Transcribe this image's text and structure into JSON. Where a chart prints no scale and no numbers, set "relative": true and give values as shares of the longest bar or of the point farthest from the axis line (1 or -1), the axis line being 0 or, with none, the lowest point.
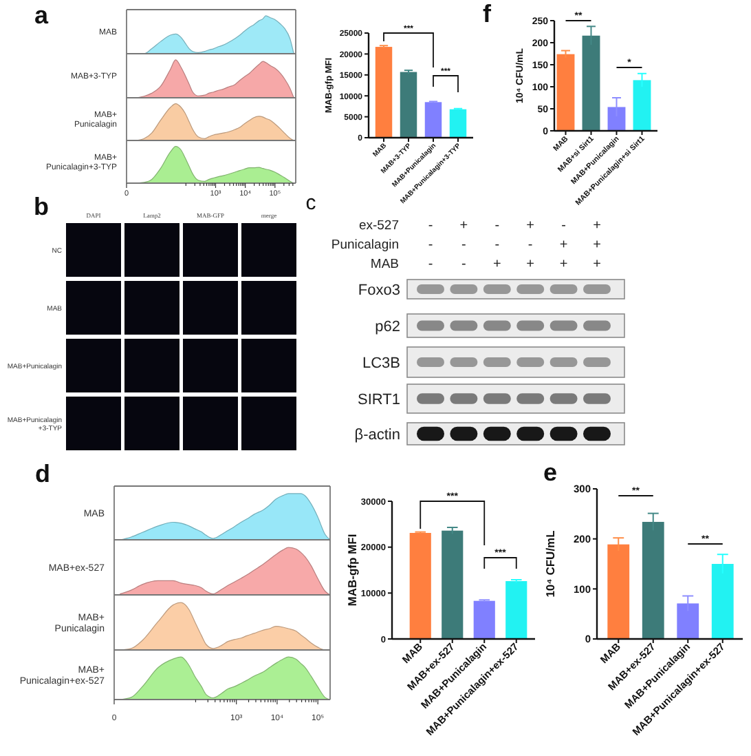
{
  "chart_data": [
    {
      "type": "area",
      "title": "a",
      "relative": true,
      "log": "x",
      "tick_labels": false,
      "xlim": [
        0,
        500000
      ],
      "x": [
        2.2,
        3.9,
        7,
        14,
        30,
        45,
        69,
        93,
        130,
        170,
        260,
        430,
        590,
        850,
        1300,
        1700,
        2600,
        4500,
        6300,
        9200,
        14000,
        19000,
        29000,
        39000,
        49000,
        70000,
        100000,
        150000,
        210000,
        320000,
        430000
      ],
      "series": [
        {
          "name": "MAB",
          "color": "#9ee9f7",
          "values": [
            0,
            0,
            0.13,
            0.32,
            0.49,
            0.52,
            0.43,
            0.29,
            0.13,
            0.06,
            0.03,
            0.06,
            0.1,
            0.13,
            0.19,
            0.22,
            0.29,
            0.4,
            0.48,
            0.59,
            0.7,
            0.76,
            0.87,
            0.92,
            1,
            0.95,
            0.9,
            0.79,
            0.67,
            0.4,
            0
          ]
        }
      ]
    },
    {
      "type": "area",
      "relative": true,
      "log": "x",
      "tick_labels": false,
      "xlim": [
        0,
        500000
      ],
      "x": [
        2.2,
        3.9,
        7,
        14,
        30,
        45,
        69,
        93,
        130,
        170,
        260,
        430,
        590,
        850,
        1300,
        1700,
        2600,
        4500,
        6300,
        9200,
        14000,
        19000,
        29000,
        39000,
        49000,
        70000,
        100000,
        150000,
        210000,
        320000,
        430000
      ],
      "series": [
        {
          "name": "MAB+3-TYP",
          "color": "#f6a8a8",
          "values": [
            0,
            0.04,
            0.12,
            0.3,
            0.75,
            1,
            0.8,
            0.6,
            0.35,
            0.15,
            0.05,
            0.07,
            0.12,
            0.15,
            0.2,
            0.22,
            0.28,
            0.35,
            0.45,
            0.55,
            0.65,
            0.75,
            0.88,
            0.96,
            0.93,
            0.85,
            0.78,
            0.65,
            0.5,
            0.25,
            0
          ]
        }
      ]
    },
    {
      "type": "area",
      "relative": true,
      "log": "x",
      "tick_labels": false,
      "xlim": [
        0,
        500000
      ],
      "x": [
        2.2,
        3.9,
        7,
        14,
        30,
        45,
        69,
        93,
        130,
        170,
        260,
        430,
        590,
        850,
        1300,
        1700,
        2600,
        4500,
        6300,
        9200,
        14000,
        19000,
        29000,
        39000,
        49000,
        70000,
        100000,
        150000,
        210000,
        320000,
        430000
      ],
      "series": [
        {
          "name": "MAB+\nPunicalagin",
          "color": "#f9cca3",
          "values": [
            0,
            0.05,
            0.2,
            0.55,
            0.9,
            1,
            0.9,
            0.75,
            0.5,
            0.3,
            0.1,
            0.05,
            0.1,
            0.15,
            0.18,
            0.2,
            0.23,
            0.3,
            0.35,
            0.45,
            0.55,
            0.62,
            0.66,
            0.64,
            0.6,
            0.55,
            0.45,
            0.32,
            0.2,
            0.06,
            0
          ]
        }
      ]
    },
    {
      "type": "area",
      "relative": true,
      "log": "x",
      "tick_labels": "x",
      "xlim": [
        0,
        500000
      ],
      "xticks": [
        0,
        {
          "value": 100,
          "label": null
        },
        {
          "value": 200,
          "label": null
        },
        {
          "value": 300,
          "label": null
        },
        {
          "value": 400,
          "label": null
        },
        {
          "value": 500,
          "label": null
        },
        {
          "value": 600,
          "label": null
        },
        {
          "value": 700,
          "label": null
        },
        {
          "value": 800,
          "label": null
        },
        {
          "value": 900,
          "label": null
        },
        {
          "value": 1000,
          "label": "10³"
        },
        {
          "value": 2000,
          "label": null
        },
        {
          "value": 3000,
          "label": null
        },
        {
          "value": 4000,
          "label": null
        },
        {
          "value": 5000,
          "label": null
        },
        {
          "value": 6000,
          "label": null
        },
        {
          "value": 7000,
          "label": null
        },
        {
          "value": 8000,
          "label": null
        },
        {
          "value": 9000,
          "label": null
        },
        {
          "value": 10000,
          "label": "10⁴"
        },
        {
          "value": 20000,
          "label": null
        },
        {
          "value": 30000,
          "label": null
        },
        {
          "value": 40000,
          "label": null
        },
        {
          "value": 50000,
          "label": null
        },
        {
          "value": 60000,
          "label": null
        },
        {
          "value": 70000,
          "label": null
        },
        {
          "value": 80000,
          "label": null
        },
        {
          "value": 90000,
          "label": null
        },
        {
          "value": 100000,
          "label": "10⁵"
        },
        {
          "value": 200000,
          "label": null
        },
        {
          "value": 300000,
          "label": null
        },
        {
          "value": 400000,
          "label": null
        }
      ],
      "x": [
        2.2,
        3.9,
        7,
        14,
        30,
        45,
        69,
        93,
        130,
        170,
        260,
        430,
        590,
        850,
        1300,
        1700,
        2600,
        4500,
        6300,
        9200,
        14000,
        19000,
        29000,
        39000,
        49000,
        70000,
        100000,
        150000,
        210000,
        320000,
        430000
      ],
      "series": [
        {
          "name": "MAB+\nPunicalagin+3-TYP",
          "color": "#aaee92",
          "values": [
            0,
            0.02,
            0.1,
            0.4,
            0.85,
            1,
            0.9,
            0.7,
            0.45,
            0.25,
            0.08,
            0.05,
            0.1,
            0.14,
            0.18,
            0.2,
            0.24,
            0.3,
            0.34,
            0.38,
            0.42,
            0.42,
            0.43,
            0.4,
            0.38,
            0.35,
            0.3,
            0.22,
            0.15,
            0.05,
            0
          ]
        }
      ]
    },
    {
      "type": "bar",
      "ylabel": "MAB-gfp MFI",
      "categories": [
        "MAB",
        "MAB+3-TYP",
        "MAB+Punicalagin",
        "MAB+Punicalagin+3-TYP"
      ],
      "values": [
        21700,
        15700,
        8500,
        6800
      ],
      "errors": [
        300,
        400,
        150,
        150
      ],
      "colors": [
        "#ff7f3f",
        "#3d7b79",
        "#8080ff",
        "#22f2f2"
      ],
      "ylim": [
        0,
        25000
      ],
      "yticks": [
        0,
        5000,
        10000,
        15000,
        20000,
        25000
      ],
      "annotations": [
        "***",
        "***"
      ]
    },
    {
      "type": "bar",
      "title": "f",
      "ylabel": "10⁴ CFU/mL",
      "categories": [
        "MAB",
        "MAB+si Sirt1",
        "MAB+Punicalagin",
        "MAB+Punicalagin+si Sirt1"
      ],
      "values": [
        174,
        216,
        54,
        115
      ],
      "errors": [
        8,
        21,
        21,
        15
      ],
      "colors": [
        "#ff7f3f",
        "#3d7b79",
        "#8080ff",
        "#22f2f2"
      ],
      "ylim": [
        0,
        250
      ],
      "yticks": [
        0,
        50,
        100,
        150,
        200,
        250
      ],
      "annotations": [
        "**",
        "*"
      ]
    },
    {
      "type": "other",
      "title": "b",
      "categories": [
        "DAPI",
        "Lamp2",
        "MAB-GFP",
        "merge"
      ],
      "y_categories": [
        "NC",
        "MAB",
        "MAB+Punicalagin",
        "MAB+Punicalagin\n+3-TYP"
      ]
    },
    {
      "type": "other",
      "title": "c",
      "y_categories": [
        "ex-527",
        "Punicalagin",
        "MAB"
      ],
      "cell_labels": [
        [
          "-",
          "+",
          "-",
          "+",
          "-",
          "+"
        ],
        [
          "-",
          "-",
          "-",
          "-",
          "+",
          "+"
        ],
        [
          "-",
          "-",
          "+",
          "+",
          "+",
          "+"
        ]
      ],
      "annotations": [
        "Foxo3",
        "p62",
        "LC3B",
        "SIRT1",
        "β-actin"
      ]
    },
    {
      "type": "area",
      "title": "d",
      "relative": true,
      "log": "x",
      "tick_labels": false,
      "xlim": [
        0,
        200000
      ],
      "x": [
        1.4,
        2.6,
        4.9,
        12,
        28,
        44,
        69,
        95,
        140,
        180,
        270,
        440,
        620,
        880,
        1300,
        1800,
        2700,
        4600,
        6500,
        9300,
        14000,
        19000,
        29000,
        38000,
        49000,
        68000,
        99000,
        150000,
        200000
      ],
      "series": [
        {
          "name": "MAB",
          "color": "#98e7f8",
          "values": [
            0,
            0.06,
            0.16,
            0.3,
            0.38,
            0.36,
            0.3,
            0.24,
            0.17,
            0.1,
            0.03,
            0.12,
            0.2,
            0.28,
            0.38,
            0.45,
            0.55,
            0.65,
            0.75,
            0.88,
            0.96,
            1,
            1,
            1,
            0.95,
            0.78,
            0.5,
            0.12,
            0
          ]
        }
      ]
    },
    {
      "type": "area",
      "relative": true,
      "log": "x",
      "tick_labels": false,
      "xlim": [
        0,
        200000
      ],
      "x": [
        1.4,
        2.6,
        4.9,
        12,
        28,
        44,
        69,
        95,
        140,
        180,
        270,
        440,
        620,
        880,
        1300,
        1800,
        2700,
        4600,
        6500,
        9300,
        14000,
        19000,
        29000,
        38000,
        49000,
        68000,
        99000,
        150000,
        200000
      ],
      "series": [
        {
          "name": "MAB+ex-527",
          "color": "#f7a9a9",
          "values": [
            0.02,
            0.1,
            0.22,
            0.3,
            0.3,
            0.25,
            0.22,
            0.2,
            0.15,
            0.08,
            0.02,
            0.12,
            0.2,
            0.27,
            0.35,
            0.42,
            0.52,
            0.65,
            0.75,
            0.85,
            0.95,
            1,
            0.97,
            0.9,
            0.8,
            0.62,
            0.35,
            0.08,
            0
          ]
        }
      ]
    },
    {
      "type": "area",
      "relative": true,
      "log": "x",
      "tick_labels": false,
      "xlim": [
        0,
        200000
      ],
      "x": [
        1.4,
        2.6,
        4.9,
        12,
        28,
        44,
        69,
        95,
        140,
        180,
        270,
        440,
        620,
        880,
        1300,
        1800,
        2700,
        4600,
        6500,
        9300,
        14000,
        19000,
        29000,
        38000,
        49000,
        68000,
        99000,
        150000,
        200000
      ],
      "series": [
        {
          "name": "MAB+\nPunicalagin",
          "color": "#fbcea7",
          "values": [
            0,
            0.03,
            0.2,
            0.6,
            0.95,
            1,
            0.85,
            0.6,
            0.3,
            0.12,
            0.03,
            0.1,
            0.18,
            0.22,
            0.25,
            0.3,
            0.35,
            0.42,
            0.45,
            0.5,
            0.48,
            0.45,
            0.4,
            0.32,
            0.25,
            0.15,
            0.06,
            0,
            0
          ]
        }
      ]
    },
    {
      "type": "area",
      "relative": true,
      "log": "x",
      "tick_labels": "x",
      "xlim": [
        0,
        200000
      ],
      "xticks": [
        0,
        {
          "value": 100,
          "label": null
        },
        {
          "value": 200,
          "label": null
        },
        {
          "value": 300,
          "label": null
        },
        {
          "value": 400,
          "label": null
        },
        {
          "value": 500,
          "label": null
        },
        {
          "value": 600,
          "label": null
        },
        {
          "value": 700,
          "label": null
        },
        {
          "value": 800,
          "label": null
        },
        {
          "value": 900,
          "label": null
        },
        {
          "value": 1000,
          "label": "10³"
        },
        {
          "value": 2000,
          "label": null
        },
        {
          "value": 3000,
          "label": null
        },
        {
          "value": 4000,
          "label": null
        },
        {
          "value": 5000,
          "label": null
        },
        {
          "value": 6000,
          "label": null
        },
        {
          "value": 7000,
          "label": null
        },
        {
          "value": 8000,
          "label": null
        },
        {
          "value": 9000,
          "label": null
        },
        {
          "value": 10000,
          "label": "10⁴"
        },
        {
          "value": 20000,
          "label": null
        },
        {
          "value": 30000,
          "label": null
        },
        {
          "value": 40000,
          "label": null
        },
        {
          "value": 50000,
          "label": null
        },
        {
          "value": 60000,
          "label": null
        },
        {
          "value": 70000,
          "label": null
        },
        {
          "value": 80000,
          "label": null
        },
        {
          "value": 90000,
          "label": null
        },
        {
          "value": 100000,
          "label": "10⁵"
        }
      ],
      "x": [
        1.4,
        2.6,
        4.9,
        12,
        28,
        44,
        69,
        95,
        140,
        180,
        270,
        440,
        620,
        880,
        1300,
        1800,
        2700,
        4600,
        6500,
        9300,
        14000,
        19000,
        29000,
        38000,
        49000,
        68000,
        99000,
        150000,
        200000
      ],
      "series": [
        {
          "name": "MAB+\nPunicalagin+ex-527",
          "color": "#abef94",
          "values": [
            0,
            0.05,
            0.3,
            0.75,
            0.95,
            1,
            0.8,
            0.55,
            0.3,
            0.12,
            0.04,
            0.15,
            0.25,
            0.3,
            0.38,
            0.45,
            0.55,
            0.65,
            0.75,
            0.85,
            0.95,
            1,
            0.95,
            0.85,
            0.75,
            0.55,
            0.3,
            0.05,
            0
          ]
        }
      ]
    },
    {
      "type": "bar",
      "ylabel": "MAB-gfp MFI",
      "categories": [
        "MAB",
        "MAB+ex-527",
        "MAB+Punicalagin",
        "MAB+Punicalagin+ex-527"
      ],
      "values": [
        23100,
        23600,
        8300,
        12600
      ],
      "errors": [
        200,
        700,
        200,
        300
      ],
      "colors": [
        "#ff7f3f",
        "#3d7b79",
        "#8080ff",
        "#22f2f2"
      ],
      "ylim": [
        0,
        30000
      ],
      "yticks": [
        0,
        10000,
        20000,
        30000
      ],
      "annotations": [
        "***",
        "***"
      ]
    },
    {
      "type": "bar",
      "title": "e",
      "ylabel": "10⁴ CFU/mL",
      "categories": [
        "MAB",
        "MAB+ex-527",
        "MAB+Punicalagin",
        "MAB+Punicalagin+ex-527"
      ],
      "values": [
        189,
        234,
        71,
        150
      ],
      "errors": [
        13,
        17,
        15,
        19
      ],
      "colors": [
        "#ff7f3f",
        "#3d7b79",
        "#8080ff",
        "#22f2f2"
      ],
      "ylim": [
        0,
        300
      ],
      "yticks": [
        0,
        100,
        200,
        300
      ],
      "annotations": [
        "**",
        "**"
      ]
    }
  ]
}
